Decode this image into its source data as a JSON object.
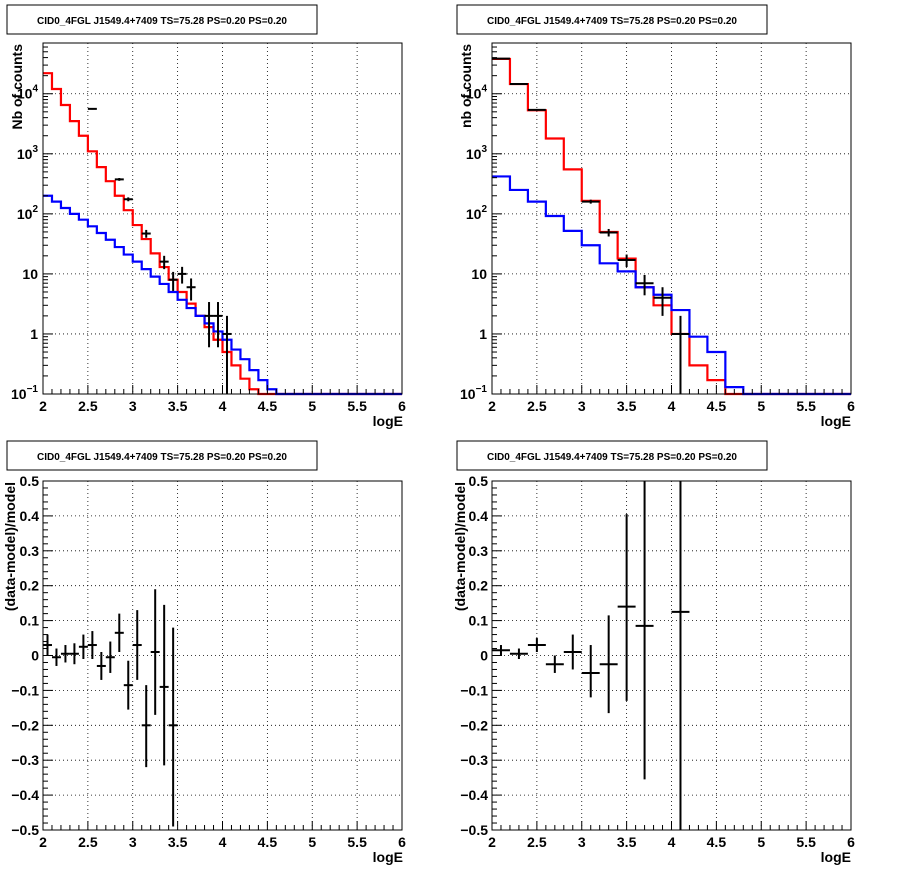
{
  "chart_data": [
    {
      "type": "line",
      "title": "CID0_4FGL J1549.4+7409 TS=75.28 PS=0.20 PS=0.20",
      "xlabel": "logE",
      "ylabel": "Nb of counts",
      "xlim": [
        2,
        6
      ],
      "ylim": [
        0.1,
        70000
      ],
      "yscale": "log",
      "grid": true,
      "xticks": [
        "2",
        "2.5",
        "3",
        "3.5",
        "4",
        "4.5",
        "5",
        "5.5",
        "6"
      ],
      "yticks": [
        {
          "value": 0.1,
          "label": "10",
          "sup": "−1"
        },
        {
          "value": 1,
          "label": "1",
          "sup": ""
        },
        {
          "value": 10,
          "label": "10",
          "sup": ""
        },
        {
          "value": 100,
          "label": "10",
          "sup": "2"
        },
        {
          "value": 1000,
          "label": "10",
          "sup": "3"
        },
        {
          "value": 10000,
          "label": "10",
          "sup": "4"
        }
      ],
      "bin_edges": [
        2.0,
        2.1,
        2.2,
        2.3,
        2.4,
        2.5,
        2.6,
        2.7,
        2.8,
        2.9,
        3.0,
        3.1,
        3.2,
        3.3,
        3.4,
        3.5,
        3.6,
        3.7,
        3.8,
        3.9,
        4.0,
        4.1,
        4.2,
        4.3,
        4.4,
        4.5,
        4.6,
        4.7,
        4.8,
        4.9,
        5.0,
        5.1,
        5.2,
        5.3,
        5.4,
        5.5,
        5.6,
        5.7,
        5.8,
        5.9,
        6.0
      ],
      "series": [
        {
          "name": "",
          "color": "#ff0000",
          "style": "step",
          "values": [
            22000,
            12000,
            6500,
            3500,
            2000,
            1100,
            600,
            350,
            200,
            115,
            65,
            38,
            22,
            13,
            8,
            5,
            3.2,
            2,
            1.3,
            0.8,
            0.5,
            0.3,
            0.18,
            0.12,
            0.1,
            0.1,
            0.1,
            0.1,
            0.1,
            0.1,
            0.1,
            0.1,
            0.1,
            0.1,
            0.1,
            0.1,
            0.1,
            0.1,
            0.1,
            0.1
          ]
        },
        {
          "name": "",
          "color": "#0000ff",
          "style": "step",
          "values": [
            200,
            160,
            125,
            100,
            80,
            62,
            48,
            37,
            28,
            21,
            16,
            12,
            9,
            6.8,
            5,
            3.7,
            2.7,
            2,
            1.5,
            1.1,
            0.8,
            0.55,
            0.38,
            0.25,
            0.17,
            0.12,
            0.1,
            0.1,
            0.1,
            0.1,
            0.1,
            0.1,
            0.1,
            0.1,
            0.1,
            0.1,
            0.1,
            0.1,
            0.1,
            0.1
          ]
        },
        {
          "name": "",
          "color": "#000000",
          "style": "points",
          "points": [
            {
              "x": 2.55,
              "y": 5600,
              "lo": 5450,
              "hi": 5750
            },
            {
              "x": 2.85,
              "y": 375,
              "lo": 355,
              "hi": 395
            },
            {
              "x": 2.95,
              "y": 175,
              "lo": 162,
              "hi": 188
            },
            {
              "x": 3.15,
              "y": 47,
              "lo": 40,
              "hi": 54
            },
            {
              "x": 3.35,
              "y": 16,
              "lo": 12,
              "hi": 20
            },
            {
              "x": 3.45,
              "y": 8,
              "lo": 5.2,
              "hi": 10.8
            },
            {
              "x": 3.55,
              "y": 10,
              "lo": 6.9,
              "hi": 13.1
            },
            {
              "x": 3.65,
              "y": 6,
              "lo": 3.6,
              "hi": 8.4
            },
            {
              "x": 3.85,
              "y": 2,
              "lo": 0.6,
              "hi": 3.4
            },
            {
              "x": 3.95,
              "y": 2,
              "lo": 0.6,
              "hi": 3.4
            },
            {
              "x": 4.05,
              "y": 1,
              "lo": 0.1,
              "hi": 2
            }
          ]
        }
      ]
    },
    {
      "type": "line",
      "title": "CID0_4FGL J1549.4+7409 TS=75.28 PS=0.20 PS=0.20",
      "xlabel": "logE",
      "ylabel": "nb of counts",
      "xlim": [
        2,
        6
      ],
      "ylim": [
        0.1,
        70000
      ],
      "yscale": "log",
      "grid": true,
      "xticks": [
        "2",
        "2.5",
        "3",
        "3.5",
        "4",
        "4.5",
        "5",
        "5.5",
        "6"
      ],
      "yticks": [
        {
          "value": 0.1,
          "label": "10",
          "sup": "−1"
        },
        {
          "value": 1,
          "label": "1",
          "sup": ""
        },
        {
          "value": 10,
          "label": "10",
          "sup": ""
        },
        {
          "value": 100,
          "label": "10",
          "sup": "2"
        },
        {
          "value": 1000,
          "label": "10",
          "sup": "3"
        },
        {
          "value": 10000,
          "label": "10",
          "sup": "4"
        }
      ],
      "bin_edges": [
        2.0,
        2.2,
        2.4,
        2.6,
        2.8,
        3.0,
        3.2,
        3.4,
        3.6,
        3.8,
        4.0,
        4.2,
        4.4,
        4.6,
        4.8,
        5.0,
        5.2,
        5.4,
        5.6,
        5.8,
        6.0
      ],
      "series": [
        {
          "name": "",
          "color": "#ff0000",
          "style": "step",
          "values": [
            38000,
            14500,
            5300,
            1800,
            550,
            165,
            50,
            18,
            6,
            3,
            1,
            0.3,
            0.17,
            0.1,
            0.1,
            0.1,
            0.1,
            0.1,
            0.1,
            0.1
          ]
        },
        {
          "name": "",
          "color": "#0000ff",
          "style": "step",
          "values": [
            420,
            250,
            160,
            92,
            52,
            30,
            15,
            11,
            6,
            4.5,
            2.5,
            0.9,
            0.5,
            0.13,
            0.1,
            0.1,
            0.1,
            0.1,
            0.1,
            0.1
          ]
        },
        {
          "name": "",
          "color": "#000000",
          "style": "points",
          "points": [
            {
              "x": 2.1,
              "y": 38500,
              "lo": 38300,
              "hi": 38700
            },
            {
              "x": 2.3,
              "y": 14500,
              "lo": 14380,
              "hi": 14620
            },
            {
              "x": 2.5,
              "y": 5400,
              "lo": 5330,
              "hi": 5470
            },
            {
              "x": 3.1,
              "y": 160,
              "lo": 148,
              "hi": 172
            },
            {
              "x": 3.3,
              "y": 49,
              "lo": 42,
              "hi": 56
            },
            {
              "x": 3.5,
              "y": 17,
              "lo": 13,
              "hi": 21
            },
            {
              "x": 3.7,
              "y": 7,
              "lo": 4.4,
              "hi": 9.6
            },
            {
              "x": 3.9,
              "y": 4,
              "lo": 2,
              "hi": 6
            },
            {
              "x": 4.1,
              "y": 1,
              "lo": 0.1,
              "hi": 2
            }
          ]
        }
      ]
    },
    {
      "type": "scatter",
      "title": "CID0_4FGL J1549.4+7409 TS=75.28 PS=0.20 PS=0.20",
      "xlabel": "logE",
      "ylabel": "(data-model)/model",
      "xlim": [
        2,
        6
      ],
      "ylim": [
        -0.5,
        0.5
      ],
      "grid": true,
      "xticks": [
        "2",
        "2.5",
        "3",
        "3.5",
        "4",
        "4.5",
        "5",
        "5.5",
        "6"
      ],
      "yticks": [
        "−0.5",
        "−0.4",
        "−0.3",
        "−0.2",
        "−0.1",
        "0",
        "0.1",
        "0.2",
        "0.3",
        "0.4",
        "0.5"
      ],
      "xhalfwidth": 0.05,
      "points": [
        {
          "x": 2.05,
          "y": 0.03,
          "lo": 0.0,
          "hi": 0.06
        },
        {
          "x": 2.15,
          "y": -0.005,
          "lo": -0.03,
          "hi": 0.02
        },
        {
          "x": 2.25,
          "y": 0.005,
          "lo": -0.02,
          "hi": 0.03
        },
        {
          "x": 2.35,
          "y": 0.005,
          "lo": -0.025,
          "hi": 0.035
        },
        {
          "x": 2.45,
          "y": 0.025,
          "lo": -0.01,
          "hi": 0.06
        },
        {
          "x": 2.55,
          "y": 0.03,
          "lo": -0.01,
          "hi": 0.07
        },
        {
          "x": 2.65,
          "y": -0.03,
          "lo": -0.07,
          "hi": 0.01
        },
        {
          "x": 2.75,
          "y": -0.005,
          "lo": -0.05,
          "hi": 0.04
        },
        {
          "x": 2.85,
          "y": 0.065,
          "lo": 0.01,
          "hi": 0.12
        },
        {
          "x": 2.95,
          "y": -0.085,
          "lo": -0.155,
          "hi": -0.015
        },
        {
          "x": 3.05,
          "y": 0.03,
          "lo": -0.07,
          "hi": 0.13
        },
        {
          "x": 3.15,
          "y": -0.2,
          "lo": -0.32,
          "hi": -0.085
        },
        {
          "x": 3.25,
          "y": 0.01,
          "lo": -0.17,
          "hi": 0.19
        },
        {
          "x": 3.35,
          "y": -0.09,
          "lo": -0.315,
          "hi": 0.145
        },
        {
          "x": 3.45,
          "y": -0.2,
          "lo": -0.49,
          "hi": 0.08
        }
      ]
    },
    {
      "type": "scatter",
      "title": "CID0_4FGL J1549.4+7409 TS=75.28 PS=0.20 PS=0.20",
      "xlabel": "logE",
      "ylabel": "(data-model)/model",
      "xlim": [
        2,
        6
      ],
      "ylim": [
        -0.5,
        0.5
      ],
      "grid": true,
      "xticks": [
        "2",
        "2.5",
        "3",
        "3.5",
        "4",
        "4.5",
        "5",
        "5.5",
        "6"
      ],
      "yticks": [
        "−0.5",
        "−0.4",
        "−0.3",
        "−0.2",
        "−0.1",
        "0",
        "0.1",
        "0.2",
        "0.3",
        "0.4",
        "0.5"
      ],
      "xhalfwidth": 0.1,
      "points": [
        {
          "x": 2.1,
          "y": 0.015,
          "lo": 0.0,
          "hi": 0.03
        },
        {
          "x": 2.3,
          "y": 0.005,
          "lo": -0.01,
          "hi": 0.02
        },
        {
          "x": 2.5,
          "y": 0.03,
          "lo": 0.01,
          "hi": 0.05
        },
        {
          "x": 2.7,
          "y": -0.025,
          "lo": -0.05,
          "hi": 0.0
        },
        {
          "x": 2.9,
          "y": 0.01,
          "lo": -0.04,
          "hi": 0.06
        },
        {
          "x": 3.1,
          "y": -0.05,
          "lo": -0.12,
          "hi": 0.03
        },
        {
          "x": 3.3,
          "y": -0.025,
          "lo": -0.165,
          "hi": 0.115
        },
        {
          "x": 3.5,
          "y": 0.14,
          "lo": -0.13,
          "hi": 0.405
        },
        {
          "x": 3.7,
          "y": 0.085,
          "lo": -0.355,
          "hi": 0.5
        },
        {
          "x": 4.1,
          "y": 0.125,
          "lo": -0.5,
          "hi": 0.5
        }
      ]
    }
  ]
}
